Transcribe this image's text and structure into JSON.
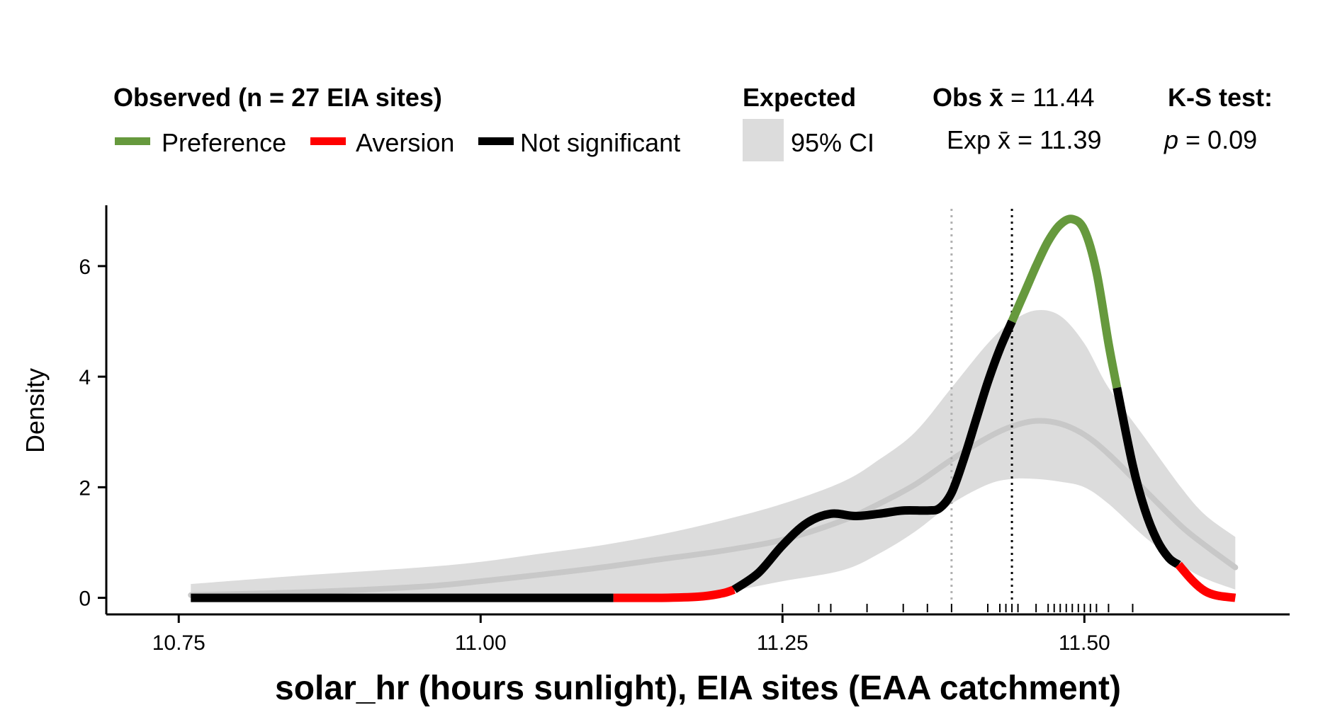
{
  "chart_data": {
    "type": "line",
    "title": "",
    "xlabel": "solar_hr (hours sunlight), EIA sites (EAA catchment)",
    "ylabel": "Density",
    "xlim": [
      10.69,
      11.67
    ],
    "ylim": [
      -0.3,
      7.1
    ],
    "x_ticks": [
      10.75,
      11.0,
      11.25,
      11.5
    ],
    "x_tick_labels": [
      "10.75",
      "11.00",
      "11.25",
      "11.50"
    ],
    "y_ticks": [
      0,
      2,
      4,
      6
    ],
    "y_tick_labels": [
      "0",
      "2",
      "4",
      "6"
    ],
    "grid": false,
    "legend": {
      "observed_title": "Observed (n = 27 EIA sites)",
      "items": [
        {
          "label": "Preference",
          "color": "#66993d"
        },
        {
          "label": "Aversion",
          "color": "#ff0000"
        },
        {
          "label": "Not significant",
          "color": "#000000"
        }
      ],
      "expected_title": "Expected",
      "ci_label": "95% CI",
      "ci_color": "#dcdcdc",
      "obs_mean_label": "Obs",
      "obs_mean_value": " = 11.44",
      "exp_mean_label": "Exp",
      "exp_mean_value": " = 11.39",
      "xbar_symbol": "x̄",
      "ks_title": "K-S test:",
      "ks_p_symbol": "p",
      "ks_p_value": " = 0.09"
    },
    "expected_ci": {
      "x": [
        10.76,
        10.85,
        10.95,
        11.0,
        11.05,
        11.1,
        11.15,
        11.2,
        11.25,
        11.3,
        11.33,
        11.36,
        11.39,
        11.42,
        11.44,
        11.46,
        11.48,
        11.5,
        11.52,
        11.55,
        11.58,
        11.6,
        11.625
      ],
      "lower": [
        0,
        0,
        0,
        0,
        0,
        0,
        0,
        0.1,
        0.3,
        0.5,
        0.8,
        1.2,
        1.7,
        2.05,
        2.15,
        2.15,
        2.1,
        2.0,
        1.7,
        1.1,
        0.6,
        0.35,
        0.15
      ],
      "upper": [
        0.25,
        0.4,
        0.55,
        0.65,
        0.8,
        0.95,
        1.15,
        1.4,
        1.7,
        2.1,
        2.5,
        3.0,
        3.8,
        4.6,
        5.0,
        5.2,
        5.1,
        4.6,
        3.8,
        2.9,
        2.0,
        1.5,
        1.1
      ]
    },
    "expected_mean": {
      "x": [
        10.76,
        10.85,
        10.95,
        11.0,
        11.05,
        11.1,
        11.15,
        11.2,
        11.25,
        11.3,
        11.33,
        11.36,
        11.39,
        11.42,
        11.44,
        11.46,
        11.48,
        11.5,
        11.52,
        11.55,
        11.58,
        11.6,
        11.625
      ],
      "y": [
        0.05,
        0.1,
        0.2,
        0.3,
        0.42,
        0.55,
        0.7,
        0.85,
        1.05,
        1.4,
        1.7,
        2.05,
        2.5,
        2.9,
        3.1,
        3.2,
        3.15,
        2.95,
        2.6,
        1.95,
        1.3,
        0.95,
        0.55
      ]
    },
    "series": [
      {
        "status": "Not significant",
        "color": "#000000",
        "x": [
          10.76,
          10.9,
          11.0,
          11.11
        ],
        "y": [
          0,
          0,
          0,
          0
        ]
      },
      {
        "status": "Aversion",
        "color": "#ff0000",
        "x": [
          11.11,
          11.15,
          11.18,
          11.2,
          11.21
        ],
        "y": [
          0,
          0,
          0.02,
          0.08,
          0.15
        ]
      },
      {
        "status": "Not significant",
        "color": "#000000",
        "x": [
          11.21,
          11.23,
          11.25,
          11.27,
          11.29,
          11.31,
          11.33,
          11.35,
          11.37,
          11.38,
          11.39,
          11.4,
          11.41,
          11.42,
          11.43,
          11.44
        ],
        "y": [
          0.15,
          0.45,
          0.95,
          1.35,
          1.52,
          1.48,
          1.52,
          1.58,
          1.58,
          1.62,
          1.9,
          2.5,
          3.2,
          3.9,
          4.5,
          5.0
        ]
      },
      {
        "status": "Preference",
        "color": "#66993d",
        "x": [
          11.44,
          11.45,
          11.46,
          11.47,
          11.48,
          11.49,
          11.5,
          11.51,
          11.52,
          11.527
        ],
        "y": [
          5.0,
          5.5,
          6.0,
          6.45,
          6.75,
          6.85,
          6.65,
          5.9,
          4.6,
          3.8
        ]
      },
      {
        "status": "Not significant",
        "color": "#000000",
        "x": [
          11.527,
          11.54,
          11.55,
          11.56,
          11.57,
          11.578
        ],
        "y": [
          3.8,
          2.4,
          1.6,
          1.05,
          0.72,
          0.6
        ]
      },
      {
        "status": "Aversion",
        "color": "#ff0000",
        "x": [
          11.578,
          11.59,
          11.6,
          11.61,
          11.625
        ],
        "y": [
          0.6,
          0.3,
          0.12,
          0.04,
          0.0
        ]
      }
    ],
    "obs_mean_line": {
      "x": 11.44,
      "color": "#000000"
    },
    "exp_mean_line": {
      "x": 11.39,
      "color": "#b0b0b0"
    },
    "rug": [
      11.25,
      11.28,
      11.29,
      11.32,
      11.35,
      11.37,
      11.39,
      11.42,
      11.43,
      11.435,
      11.44,
      11.445,
      11.46,
      11.47,
      11.475,
      11.48,
      11.485,
      11.49,
      11.495,
      11.5,
      11.505,
      11.51,
      11.52,
      11.54
    ]
  }
}
